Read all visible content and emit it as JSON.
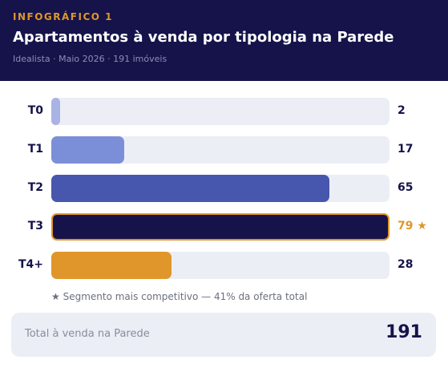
{
  "header": {
    "kicker": "INFOGRÁFICO 1",
    "title": "Apartamentos à venda por tipologia na Parede",
    "subtitle": "Idealista · Maio 2026 · 191 imóveis"
  },
  "colors": {
    "header_bg": "#15134a",
    "accent": "#e0962a",
    "track": "#eceef6",
    "bars": [
      "#a9b3e4",
      "#7b8fd8",
      "#4757ae",
      "#15134a",
      "#e0962a"
    ]
  },
  "chart_data": {
    "type": "bar",
    "orientation": "horizontal",
    "categories": [
      "T0",
      "T1",
      "T2",
      "T3",
      "T4+"
    ],
    "values": [
      2,
      17,
      65,
      79,
      28
    ],
    "value_labels": [
      "2",
      "17",
      "65",
      "79 ★",
      "28"
    ],
    "highlight_index": 3,
    "xlim": [
      0,
      79
    ],
    "grid": false,
    "legend": "none"
  },
  "footnote": "★ Segmento mais competitivo — 41% da oferta total",
  "total": {
    "label": "Total à venda na Parede",
    "value": "191"
  }
}
